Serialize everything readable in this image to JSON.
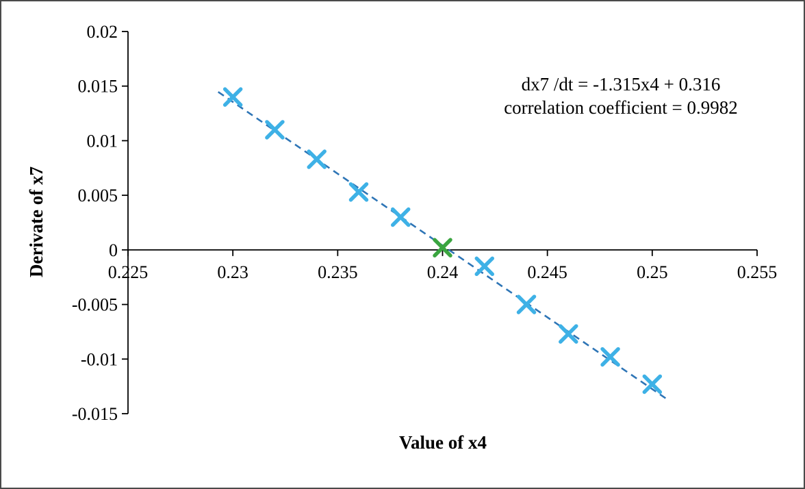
{
  "figure": {
    "background": "#ffffff",
    "border_color": "#4a4a4a"
  },
  "chart_data": {
    "type": "scatter",
    "title": "",
    "xlabel": "Value of x4",
    "ylabel": "Derivate of x7",
    "xlim": [
      0.225,
      0.255
    ],
    "ylim": [
      -0.015,
      0.02
    ],
    "grid": false,
    "legend": false,
    "x_ticks": [
      0.225,
      0.23,
      0.235,
      0.24,
      0.245,
      0.25,
      0.255
    ],
    "x_tick_labels": [
      "0.225",
      "0.23",
      "0.235",
      "0.24",
      "0.245",
      "0.25",
      "0.255"
    ],
    "y_ticks": [
      -0.015,
      -0.01,
      -0.005,
      0,
      0.005,
      0.01,
      0.015,
      0.02
    ],
    "y_tick_labels": [
      "-0.015",
      "-0.01",
      "-0.005",
      "0",
      "0.005",
      "0.01",
      "0.015",
      "0.02"
    ],
    "annotation": {
      "line1": "dx7 /dt = -1.315x4 + 0.316",
      "line2": "correlation coefficient = 0.9982"
    },
    "series": [
      {
        "name": "data-points",
        "marker": "x",
        "color": "#3EB1E6",
        "points": [
          [
            0.23,
            0.014
          ],
          [
            0.232,
            0.011
          ],
          [
            0.234,
            0.0083
          ],
          [
            0.236,
            0.0053
          ],
          [
            0.238,
            0.003
          ],
          [
            0.242,
            -0.0015
          ],
          [
            0.244,
            -0.005
          ],
          [
            0.246,
            -0.0077
          ],
          [
            0.248,
            -0.0098
          ],
          [
            0.25,
            -0.0123
          ]
        ]
      },
      {
        "name": "equilibrium-point",
        "marker": "x",
        "color": "#3AA540",
        "points": [
          [
            0.24,
            0.0002
          ]
        ]
      }
    ],
    "trendline": {
      "style": "dashed",
      "color": "#2E75B6",
      "slope": -1.315,
      "intercept": 0.316,
      "x_start": 0.2293,
      "x_end": 0.2507
    }
  }
}
